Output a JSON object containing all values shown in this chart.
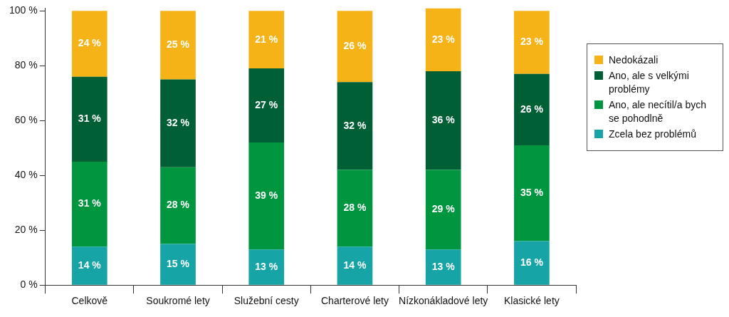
{
  "chart_data": {
    "type": "bar",
    "stacked": true,
    "legend": "right",
    "grid": false,
    "categories": [
      "Celkově",
      "Soukromé lety",
      "Služební cesty",
      "Charterové lety",
      "Nízkonákladové lety",
      "Klasické lety"
    ],
    "ylim": [
      0,
      101
    ],
    "yticks": [
      {
        "value": 0,
        "label": "0 %"
      },
      {
        "value": 20,
        "label": "20 %"
      },
      {
        "value": 40,
        "label": "40 %"
      },
      {
        "value": 60,
        "label": "60 %"
      },
      {
        "value": 80,
        "label": "80 %"
      },
      {
        "value": 100,
        "label": "100 %"
      }
    ],
    "series": [
      {
        "name": "Zcela bez problémů",
        "color": "#17a4a6",
        "values": [
          14,
          15,
          13,
          14,
          13,
          16
        ],
        "value_labels": [
          "14 %",
          "15 %",
          "13 %",
          "14 %",
          "13 %",
          "16 %"
        ]
      },
      {
        "name": "Ano, ale necítil/a bych se pohodlně",
        "color": "#00953f",
        "values": [
          31,
          28,
          39,
          28,
          29,
          35
        ],
        "value_labels": [
          "31 %",
          "28 %",
          "39 %",
          "28 %",
          "29 %",
          "35 %"
        ]
      },
      {
        "name": "Ano, ale s velkými problémy",
        "color": "#005f35",
        "values": [
          31,
          32,
          27,
          32,
          36,
          26
        ],
        "value_labels": [
          "31 %",
          "32 %",
          "27 %",
          "32 %",
          "36 %",
          "26 %"
        ]
      },
      {
        "name": "Nedokázali",
        "color": "#f6b318",
        "values": [
          24,
          25,
          21,
          26,
          23,
          23
        ],
        "value_labels": [
          "24 %",
          "25 %",
          "21 %",
          "26 %",
          "23 %",
          "23 %"
        ]
      }
    ]
  }
}
